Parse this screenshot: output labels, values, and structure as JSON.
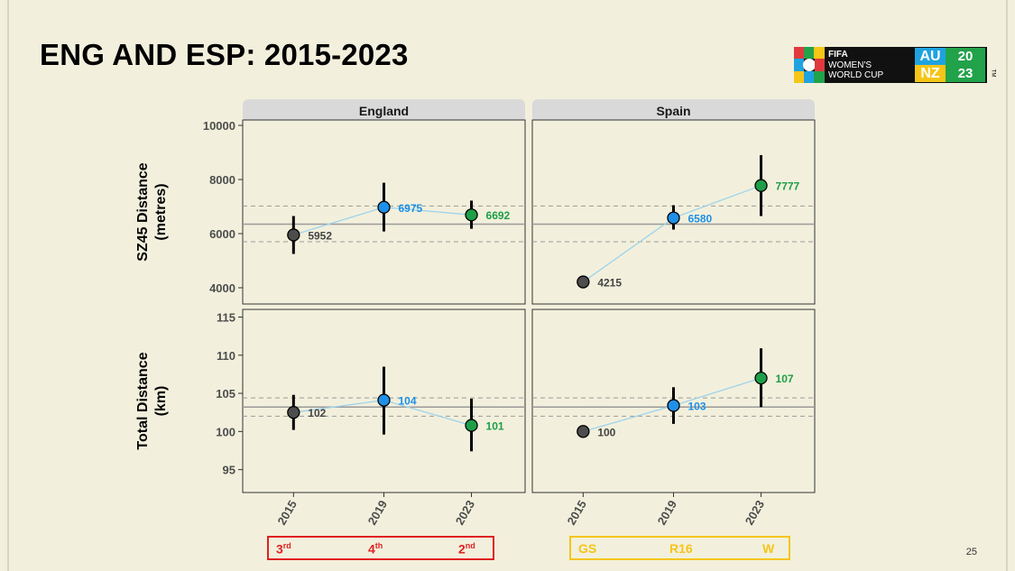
{
  "slide": {
    "title": "ENG AND ESP: 2015-2023",
    "page_number": "25"
  },
  "logo": {
    "line1": "FIFA",
    "line2": "WOMEN'S",
    "line3": "WORLD CUP",
    "au": "AU",
    "nz": "NZ",
    "year_top": "20",
    "year_bottom": "23",
    "tm": "TM"
  },
  "colors": {
    "grey_point": "#4d4d4d",
    "blue_point": "#1e90e8",
    "green_point": "#1e9e48",
    "line": "#9fd3ec",
    "england_badge": "#e02020",
    "spain_badge": "#f5c518"
  },
  "results": {
    "england": [
      {
        "main": "3",
        "sup": "rd"
      },
      {
        "main": "4",
        "sup": "th"
      },
      {
        "main": "2",
        "sup": "nd"
      }
    ],
    "spain": [
      {
        "main": "GS",
        "sup": ""
      },
      {
        "main": "R16",
        "sup": ""
      },
      {
        "main": "W",
        "sup": ""
      }
    ]
  },
  "chart_data": {
    "type": "scatter",
    "facets": [
      "England",
      "Spain"
    ],
    "x": [
      "2015",
      "2019",
      "2023"
    ],
    "rows": [
      {
        "ylabel_line1": "SZ45 Distance",
        "ylabel_line2": "(metres)",
        "ylim": [
          3400,
          10200
        ],
        "yticks": [
          4000,
          6000,
          8000,
          10000
        ],
        "reference": {
          "mean": 6350,
          "lower": 5700,
          "upper": 7020
        },
        "series": [
          {
            "name": "England",
            "values": [
              5952,
              6975,
              6692
            ],
            "labels": [
              "5952",
              "6975",
              "6692"
            ],
            "err_low": [
              5250,
              6080,
              6180
            ],
            "err_high": [
              6650,
              7880,
              7220
            ]
          },
          {
            "name": "Spain",
            "values": [
              4215,
              6580,
              7777
            ],
            "labels": [
              "4215",
              "6580",
              "7777"
            ],
            "err_low": [
              4215,
              6150,
              6650
            ],
            "err_high": [
              4215,
              7050,
              8900
            ]
          }
        ]
      },
      {
        "ylabel_line1": "Total Distance",
        "ylabel_line2": "(km)",
        "ylim": [
          92,
          116
        ],
        "yticks": [
          95,
          100,
          105,
          110,
          115
        ],
        "reference": {
          "mean": 103.2,
          "lower": 102.0,
          "upper": 104.4
        },
        "series": [
          {
            "name": "England",
            "values": [
              102.5,
              104.1,
              100.8
            ],
            "labels": [
              "102",
              "104",
              "101"
            ],
            "err_low": [
              100.2,
              99.6,
              97.4
            ],
            "err_high": [
              104.8,
              108.5,
              104.3
            ]
          },
          {
            "name": "Spain",
            "values": [
              100.0,
              103.4,
              107.0
            ],
            "labels": [
              "100",
              "103",
              "107"
            ],
            "err_low": [
              100.0,
              101.0,
              103.2
            ],
            "err_high": [
              100.0,
              105.8,
              110.9
            ]
          }
        ]
      }
    ],
    "point_colors": [
      "#4d4d4d",
      "#1e90e8",
      "#1e9e48"
    ]
  }
}
